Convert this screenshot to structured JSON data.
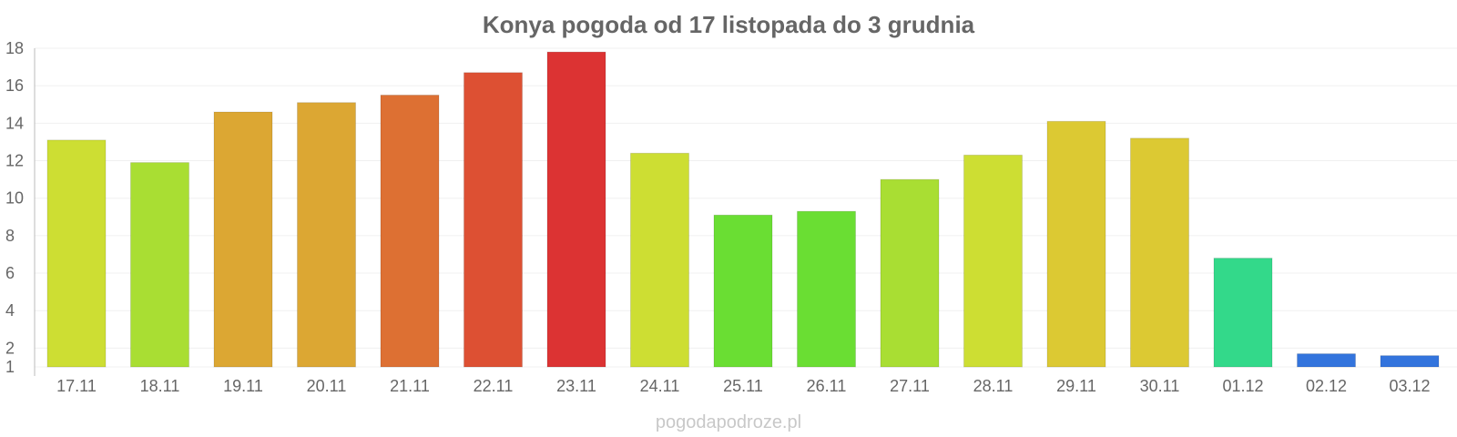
{
  "chart_data": {
    "type": "bar",
    "title": "Konya pogoda od 17 listopada do 3 grudnia",
    "xlabel": "",
    "ylabel": "",
    "ylim": [
      1,
      18
    ],
    "yticks": [
      1,
      2,
      4,
      6,
      8,
      10,
      12,
      14,
      16,
      18
    ],
    "grid": true,
    "categories": [
      "17.11",
      "18.11",
      "19.11",
      "20.11",
      "21.11",
      "22.11",
      "23.11",
      "24.11",
      "25.11",
      "26.11",
      "27.11",
      "28.11",
      "29.11",
      "30.11",
      "01.12",
      "02.12",
      "03.12"
    ],
    "values": [
      13.1,
      11.9,
      14.6,
      15.1,
      15.5,
      16.7,
      17.8,
      12.4,
      9.1,
      9.3,
      11.0,
      12.3,
      14.1,
      13.2,
      6.8,
      1.7,
      1.6
    ],
    "colors": [
      "#cdde33",
      "#a9de33",
      "#dca733",
      "#dca733",
      "#dd7033",
      "#dd5033",
      "#dc3333",
      "#cdde33",
      "#6ade33",
      "#6ade33",
      "#a9de33",
      "#cdde33",
      "#dcc933",
      "#dcc933",
      "#33d98a",
      "#3374dd",
      "#3374dd"
    ]
  },
  "watermark": "pogodapodroze.pl"
}
